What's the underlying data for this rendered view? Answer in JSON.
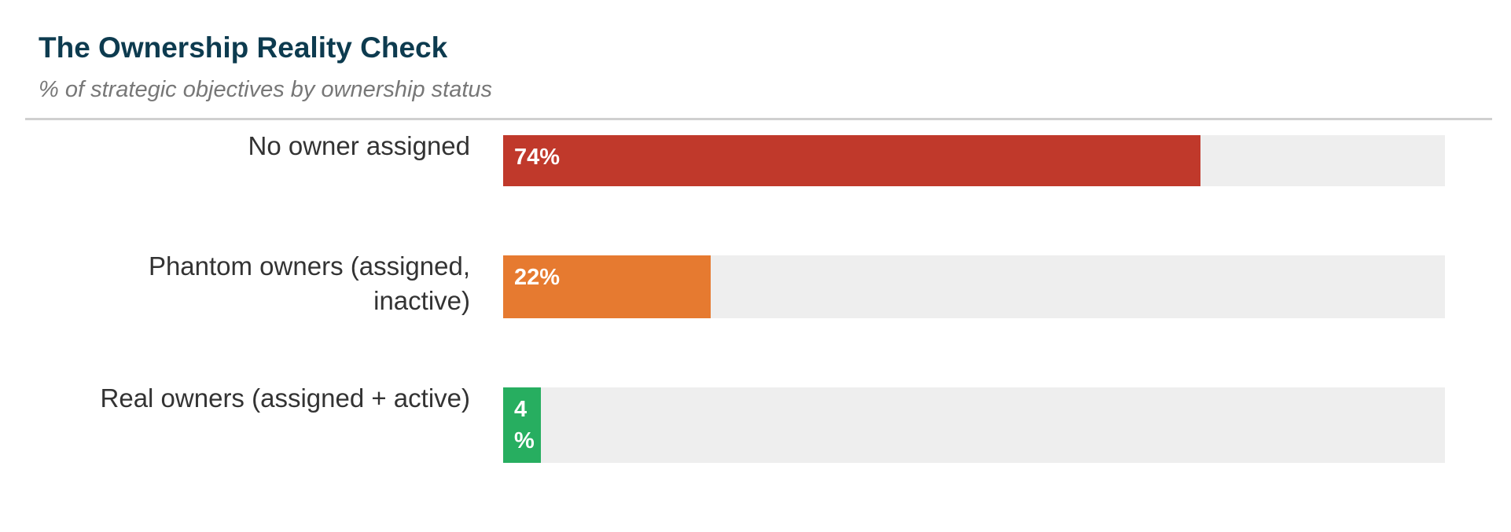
{
  "chart_data": {
    "type": "bar",
    "title": "The Ownership Reality Check",
    "subtitle": "% of strategic objectives by ownership status",
    "categories": [
      "No owner assigned",
      "Phantom owners (assigned, inactive)",
      "Real owners (assigned + active)"
    ],
    "values": [
      74,
      22,
      4
    ],
    "value_labels": [
      "74%",
      "22%",
      "4%"
    ],
    "colors": [
      "#c0392b",
      "#e67a30",
      "#27ae60"
    ],
    "track_color": "#eeeeee",
    "xlim": [
      0,
      100
    ]
  }
}
